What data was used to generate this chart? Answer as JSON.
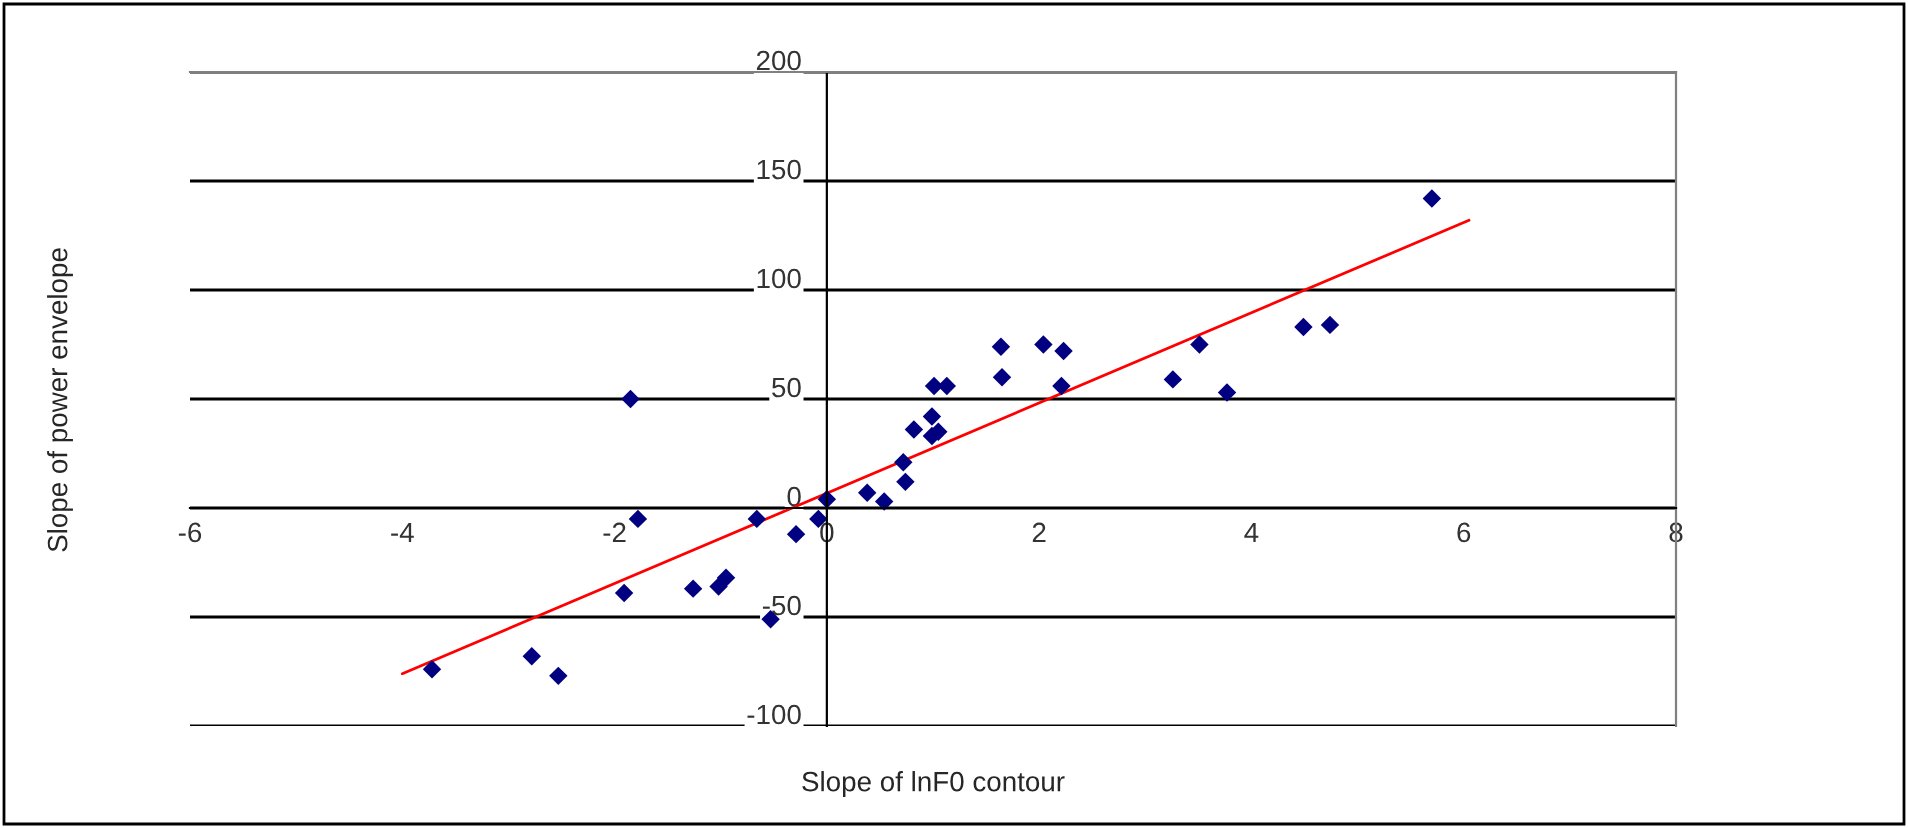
{
  "chart_data": {
    "type": "scatter",
    "xlabel": "Slope of lnF0 contour",
    "ylabel": "Slope of power envelope",
    "xlim": [
      -6,
      8
    ],
    "ylim": [
      -100,
      200
    ],
    "xticks": [
      -6,
      -4,
      -2,
      0,
      2,
      4,
      6,
      8
    ],
    "yticks": [
      -100,
      -50,
      0,
      50,
      100,
      150,
      200
    ],
    "grid": "y",
    "series": [
      {
        "marker": "diamond",
        "color": "#000080",
        "x": [
          -3.72,
          -2.78,
          -2.53,
          -1.91,
          -1.85,
          -1.78,
          -1.26,
          -1.02,
          -0.95,
          -0.66,
          -0.53,
          -0.29,
          -0.08,
          0.0,
          0.38,
          0.54,
          0.72,
          0.74,
          0.82,
          0.99,
          1.01,
          1.13,
          0.99,
          1.05,
          1.64,
          1.65,
          2.04,
          2.23,
          2.21,
          3.26,
          3.51,
          3.77,
          4.49,
          4.74,
          5.7
        ],
        "values": [
          -74,
          -68,
          -77,
          -39,
          50,
          -5,
          -37,
          -36,
          -32,
          -5,
          -51,
          -12,
          -5,
          4,
          7,
          3,
          21,
          12,
          36,
          42,
          56,
          56,
          33,
          35,
          74,
          60,
          75,
          72,
          56,
          59,
          75,
          53,
          83,
          84,
          142
        ]
      },
      {
        "type": "line",
        "marker": "none",
        "color": "#ff0000",
        "x": [
          -4,
          6.05
        ],
        "values": [
          -76,
          132
        ]
      }
    ]
  }
}
